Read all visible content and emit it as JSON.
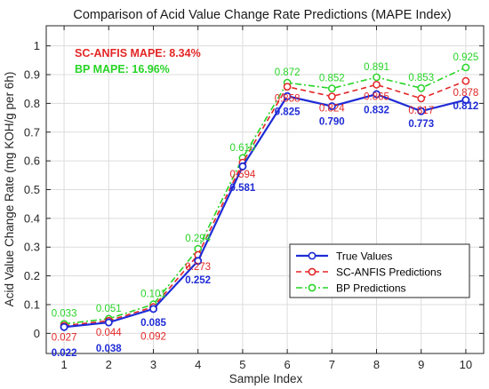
{
  "chart_data": {
    "type": "line",
    "title": "Comparison of Acid Value Change Rate Predictions (MAPE Index)",
    "xlabel": "Sample Index",
    "ylabel": "Acid Value Change Rate (mg KOH/g per 6h)",
    "x": [
      1,
      2,
      3,
      4,
      5,
      6,
      7,
      8,
      9,
      10
    ],
    "xlim": [
      0.6,
      10.4
    ],
    "ylim": [
      -0.07,
      1.07
    ],
    "yticks": [
      "0",
      "0.1",
      "0.2",
      "0.3",
      "0.4",
      "0.5",
      "0.6",
      "0.7",
      "0.8",
      "0.9",
      "1"
    ],
    "xticks": [
      "1",
      "2",
      "3",
      "4",
      "5",
      "6",
      "7",
      "8",
      "9",
      "10"
    ],
    "grid": true,
    "legend_position": "bottom-right",
    "annotations": [
      {
        "text": "SC-ANFIS MAPE: 8.34%",
        "color": "#e32626"
      },
      {
        "text": "BP MAPE: 16.96%",
        "color": "#27d427"
      }
    ],
    "series": [
      {
        "name": "True Values",
        "color": "#1f2bd6",
        "style": "solid",
        "values": [
          0.022,
          0.038,
          0.085,
          0.252,
          0.581,
          0.825,
          0.79,
          0.832,
          0.773,
          0.812
        ],
        "labels": [
          "0.022",
          "0.038",
          "0.085",
          "0.252",
          "0.581",
          "0.825",
          "0.790",
          "0.832",
          "0.773",
          "0.812"
        ]
      },
      {
        "name": "SC-ANFIS Predictions",
        "color": "#e32626",
        "style": "dashed",
        "values": [
          0.027,
          0.044,
          0.092,
          0.273,
          0.594,
          0.858,
          0.824,
          0.865,
          0.817,
          0.878
        ],
        "labels": [
          "0.027",
          "0.044",
          "0.092",
          "0.273",
          "0.594",
          "0.858",
          "0.824",
          "0.865",
          "0.817",
          "0.878"
        ]
      },
      {
        "name": "BP Predictions",
        "color": "#27d427",
        "style": "dashdot",
        "values": [
          0.033,
          0.051,
          0.101,
          0.294,
          0.61,
          0.872,
          0.852,
          0.891,
          0.853,
          0.925
        ],
        "labels": [
          "0.033",
          "0.051",
          "0.101",
          "0.294",
          "0.610",
          "0.872",
          "0.852",
          "0.891",
          "0.853",
          "0.925"
        ]
      }
    ]
  }
}
